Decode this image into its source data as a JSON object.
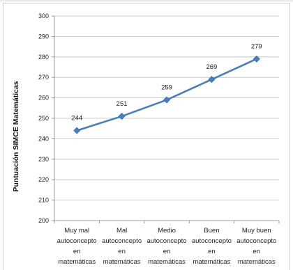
{
  "chart_data": {
    "type": "line",
    "title": "",
    "xlabel": "",
    "ylabel": "Puntuación SIMCE Matemáticas",
    "categories": [
      [
        "Muy mal",
        "autoconcepto",
        "en",
        "matemáticas"
      ],
      [
        "Mal",
        "autoconcepto",
        "en",
        "matemáticas"
      ],
      [
        "Medio",
        "autoconcepto",
        "en",
        "matemáticas"
      ],
      [
        "Buen",
        "autoconcepto",
        "en",
        "matemáticas"
      ],
      [
        "Muy buen",
        "autoconcepto",
        "en",
        "matemáticas"
      ]
    ],
    "series": [
      {
        "values": [
          244,
          251,
          259,
          269,
          279
        ],
        "data_labels": [
          "244",
          "251",
          "259",
          "269",
          "279"
        ]
      }
    ],
    "ylim": [
      200,
      300
    ],
    "yticks": [
      200,
      210,
      220,
      230,
      240,
      250,
      260,
      270,
      280,
      290,
      300
    ],
    "grid": true,
    "legend": "none",
    "colors": {
      "line": "#4a7ebb",
      "marker": "#4a7ebb",
      "grid": "#bfbfbf",
      "axis": "#808080"
    }
  }
}
